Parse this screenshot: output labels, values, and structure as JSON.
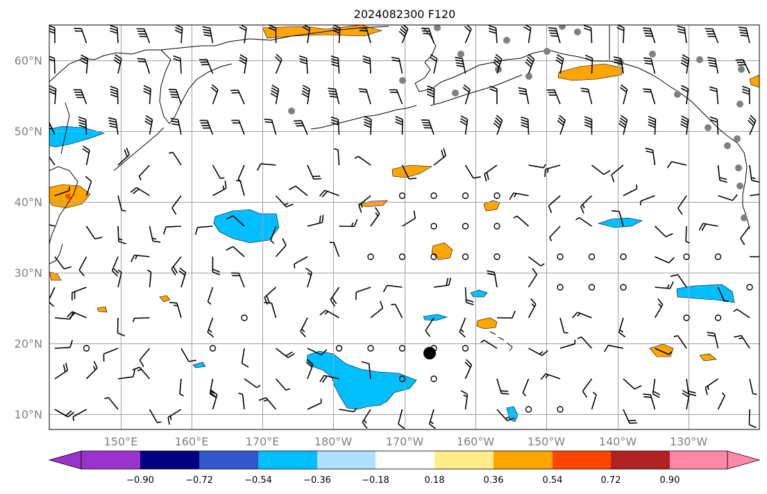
{
  "title": "2024082300 F120",
  "lat_labels": [
    "60°N",
    "50°N",
    "40°N",
    "30°N",
    "20°N",
    "10°N"
  ],
  "lon_labels": [
    "150°E",
    "160°E",
    "170°E",
    "180°W",
    "170°W",
    "160°W",
    "150°W",
    "140°W",
    "130°W"
  ],
  "colorbar": {
    "ticks": [
      "−0.90",
      "−0.72",
      "−0.54",
      "−0.36",
      "−0.18",
      "0.18",
      "0.36",
      "0.54",
      "0.72",
      "0.90"
    ],
    "colors": [
      "#9933cc",
      "#000080",
      "#3355cc",
      "#00bfff",
      "#b0e0ff",
      "#ffffff",
      "#ffee88",
      "#ffa500",
      "#ff4500",
      "#b22222",
      "#ff88aa"
    ]
  },
  "field_colors": {
    "positive": "#ffa500",
    "negative": "#00bfff",
    "strong_positive": "#ff4500",
    "station": "#808080"
  },
  "map": {
    "lon_range_deg": [
      140,
      240
    ],
    "lat_range_deg": [
      8,
      65
    ],
    "storm_marker": {
      "lon": 193.3,
      "lat": 18.5
    }
  }
}
